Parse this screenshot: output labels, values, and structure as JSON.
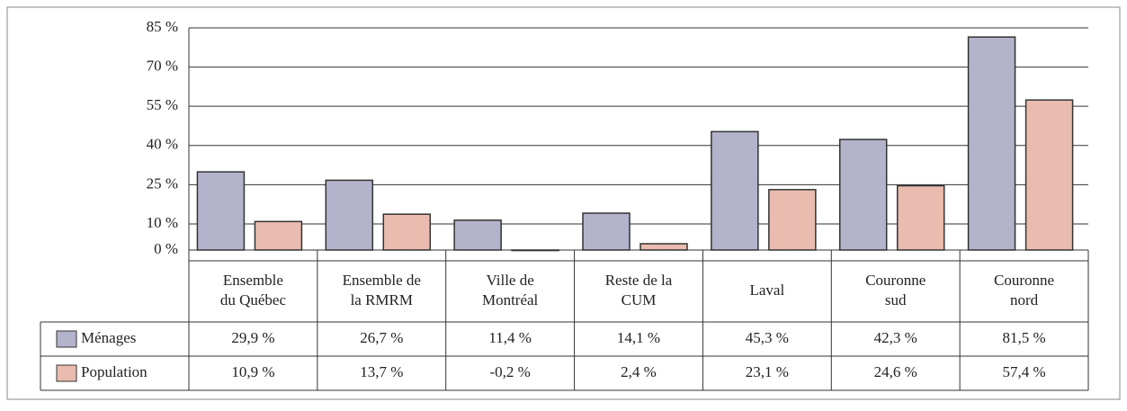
{
  "chart_data": {
    "type": "bar",
    "categories": [
      [
        "Ensemble",
        "du Québec"
      ],
      [
        "Ensemble de",
        "la RMRM"
      ],
      [
        "Ville de",
        "Montréal"
      ],
      [
        "Reste de la",
        "CUM"
      ],
      [
        "Laval"
      ],
      [
        "Couronne",
        "sud"
      ],
      [
        "Couronne",
        "nord"
      ]
    ],
    "series": [
      {
        "name": "Ménages",
        "color": "#b3b3cb",
        "values": [
          29.9,
          26.7,
          11.4,
          14.1,
          45.3,
          42.3,
          81.5
        ],
        "value_labels": [
          "29,9 %",
          "26,7 %",
          "11,4 %",
          "14,1 %",
          "45,3 %",
          "42,3 %",
          "81,5 %"
        ]
      },
      {
        "name": "Population",
        "color": "#e9bcaf",
        "values": [
          10.9,
          13.7,
          -0.2,
          2.4,
          23.1,
          24.6,
          57.4
        ],
        "value_labels": [
          "10,9 %",
          "13,7 %",
          "-0,2 %",
          "2,4 %",
          "23,1 %",
          "24,6 %",
          "57,4 %"
        ]
      }
    ],
    "ylim": [
      0,
      85
    ],
    "yticks": [
      {
        "value": 0,
        "label": "0 %"
      },
      {
        "value": 10,
        "label": "10 %"
      },
      {
        "value": 25,
        "label": "25 %"
      },
      {
        "value": 40,
        "label": "40 %"
      },
      {
        "value": 55,
        "label": "55 %"
      },
      {
        "value": 70,
        "label": "70 %"
      },
      {
        "value": 85,
        "label": "85 %"
      }
    ],
    "grid": true
  }
}
